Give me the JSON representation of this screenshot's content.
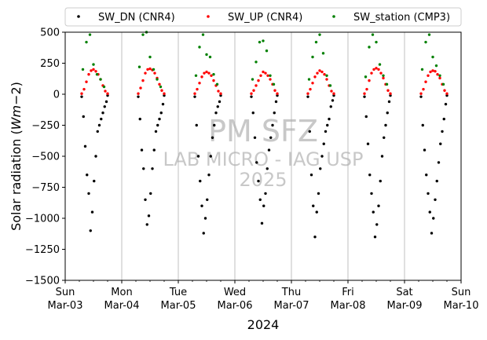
{
  "chart_data": {
    "type": "scatter",
    "title": "",
    "xlabel": "2024",
    "ylabel": "Solar radiation (Wm−2)",
    "ylabel_prefix": "Solar radiation (",
    "ylabel_unit": "Wm",
    "ylabel_suffix": "−2)",
    "xlim": [
      "2024-03-03T00:00",
      "2024-03-10T00:00"
    ],
    "ylim": [
      -1500,
      500
    ],
    "yticks": [
      500,
      250,
      0,
      -250,
      -500,
      -750,
      -1000,
      -1250,
      -1500
    ],
    "ytick_labels": [
      "500",
      "250",
      "0",
      "−250",
      "−500",
      "−750",
      "−1000",
      "−1250",
      "−1500"
    ],
    "xticks": [
      {
        "date": "2024-03-03",
        "day": "Sun",
        "label": "Mar-03"
      },
      {
        "date": "2024-03-04",
        "day": "Mon",
        "label": "Mar-04"
      },
      {
        "date": "2024-03-05",
        "day": "Tue",
        "label": "Mar-05"
      },
      {
        "date": "2024-03-06",
        "day": "Wed",
        "label": "Mar-06"
      },
      {
        "date": "2024-03-07",
        "day": "Thu",
        "label": "Mar-07"
      },
      {
        "date": "2024-03-08",
        "day": "Fri",
        "label": "Mar-08"
      },
      {
        "date": "2024-03-09",
        "day": "Sat",
        "label": "Mar-09"
      },
      {
        "date": "2024-03-10",
        "day": "Sun",
        "label": "Mar-10"
      }
    ],
    "grid": "vertical at day boundaries",
    "legend_position": "top",
    "series": [
      {
        "name": "SW_DN (CNR4)",
        "color": "#000000",
        "x": [
          "2024-03-03T07:00",
          "2024-03-03T07:45",
          "2024-03-03T08:30",
          "2024-03-03T09:15",
          "2024-03-03T10:00",
          "2024-03-03T10:45",
          "2024-03-03T11:30",
          "2024-03-03T12:15",
          "2024-03-03T13:00",
          "2024-03-03T13:45",
          "2024-03-03T14:30",
          "2024-03-03T15:15",
          "2024-03-03T16:00",
          "2024-03-03T16:45",
          "2024-03-03T17:30",
          "2024-03-03T18:00",
          "2024-03-04T07:00",
          "2024-03-04T07:45",
          "2024-03-04T08:30",
          "2024-03-04T09:15",
          "2024-03-04T10:00",
          "2024-03-04T10:45",
          "2024-03-04T11:30",
          "2024-03-04T12:15",
          "2024-03-04T13:00",
          "2024-03-04T13:45",
          "2024-03-04T14:30",
          "2024-03-04T15:15",
          "2024-03-04T16:00",
          "2024-03-04T16:45",
          "2024-03-04T17:30",
          "2024-03-04T18:00",
          "2024-03-05T07:00",
          "2024-03-05T07:45",
          "2024-03-05T08:30",
          "2024-03-05T09:15",
          "2024-03-05T10:00",
          "2024-03-05T10:45",
          "2024-03-05T11:30",
          "2024-03-05T12:15",
          "2024-03-05T13:00",
          "2024-03-05T13:45",
          "2024-03-05T14:30",
          "2024-03-05T15:15",
          "2024-03-05T16:00",
          "2024-03-05T16:45",
          "2024-03-05T17:30",
          "2024-03-05T18:00",
          "2024-03-06T07:00",
          "2024-03-06T07:45",
          "2024-03-06T08:30",
          "2024-03-06T09:15",
          "2024-03-06T10:00",
          "2024-03-06T10:45",
          "2024-03-06T11:30",
          "2024-03-06T12:15",
          "2024-03-06T13:00",
          "2024-03-06T13:45",
          "2024-03-06T14:30",
          "2024-03-06T15:15",
          "2024-03-06T16:00",
          "2024-03-06T16:45",
          "2024-03-06T17:30",
          "2024-03-06T18:00",
          "2024-03-07T07:00",
          "2024-03-07T07:45",
          "2024-03-07T08:30",
          "2024-03-07T09:15",
          "2024-03-07T10:00",
          "2024-03-07T10:45",
          "2024-03-07T11:30",
          "2024-03-07T12:15",
          "2024-03-07T13:00",
          "2024-03-07T13:45",
          "2024-03-07T14:30",
          "2024-03-07T15:15",
          "2024-03-07T16:00",
          "2024-03-07T16:45",
          "2024-03-07T17:30",
          "2024-03-07T18:00",
          "2024-03-08T07:00",
          "2024-03-08T07:45",
          "2024-03-08T08:30",
          "2024-03-08T09:15",
          "2024-03-08T10:00",
          "2024-03-08T10:45",
          "2024-03-08T11:30",
          "2024-03-08T12:15",
          "2024-03-08T13:00",
          "2024-03-08T13:45",
          "2024-03-08T14:30",
          "2024-03-08T15:15",
          "2024-03-08T16:00",
          "2024-03-08T16:45",
          "2024-03-08T17:30",
          "2024-03-08T18:00",
          "2024-03-09T07:00",
          "2024-03-09T07:45",
          "2024-03-09T08:30",
          "2024-03-09T09:15",
          "2024-03-09T10:00",
          "2024-03-09T10:45",
          "2024-03-09T11:30",
          "2024-03-09T12:15",
          "2024-03-09T13:00",
          "2024-03-09T13:45",
          "2024-03-09T14:30",
          "2024-03-09T15:15",
          "2024-03-09T16:00",
          "2024-03-09T16:45",
          "2024-03-09T17:30",
          "2024-03-09T18:00"
        ],
        "y": [
          -20,
          -180,
          -420,
          -650,
          -800,
          -1100,
          -950,
          -700,
          -500,
          -300,
          -250,
          -200,
          -150,
          -100,
          -60,
          -10,
          -20,
          -200,
          -450,
          -600,
          -850,
          -1050,
          -980,
          -800,
          -600,
          -450,
          -300,
          -250,
          -200,
          -150,
          -80,
          -10,
          -20,
          -250,
          -500,
          -700,
          -900,
          -1120,
          -1000,
          -850,
          -650,
          -500,
          -350,
          -250,
          -150,
          -100,
          -60,
          -10,
          -20,
          -150,
          -350,
          -550,
          -700,
          -850,
          -1040,
          -900,
          -800,
          -600,
          -450,
          -350,
          -250,
          -150,
          -60,
          -10,
          -20,
          -300,
          -650,
          -900,
          -1150,
          -950,
          -800,
          -600,
          -500,
          -400,
          -300,
          -250,
          -200,
          -100,
          -50,
          -10,
          -20,
          -180,
          -400,
          -650,
          -800,
          -950,
          -1150,
          -1050,
          -900,
          -700,
          -500,
          -350,
          -250,
          -150,
          -60,
          -10,
          -20,
          -250,
          -450,
          -650,
          -800,
          -950,
          -1120,
          -1000,
          -850,
          -700,
          -550,
          -400,
          -300,
          -200,
          -80,
          -10
        ]
      },
      {
        "name": "SW_UP (CNR4)",
        "color": "#ff0000",
        "x": [
          "2024-03-03T07:00",
          "2024-03-03T08:00",
          "2024-03-03T09:00",
          "2024-03-03T10:00",
          "2024-03-03T11:00",
          "2024-03-03T12:00",
          "2024-03-03T13:00",
          "2024-03-03T14:00",
          "2024-03-03T15:00",
          "2024-03-03T16:00",
          "2024-03-03T17:00",
          "2024-03-03T18:00",
          "2024-03-04T07:00",
          "2024-03-04T08:00",
          "2024-03-04T09:00",
          "2024-03-04T10:00",
          "2024-03-04T11:00",
          "2024-03-04T12:00",
          "2024-03-04T13:00",
          "2024-03-04T14:00",
          "2024-03-04T15:00",
          "2024-03-04T16:00",
          "2024-03-04T17:00",
          "2024-03-04T18:00",
          "2024-03-05T07:00",
          "2024-03-05T08:00",
          "2024-03-05T09:00",
          "2024-03-05T10:00",
          "2024-03-05T11:00",
          "2024-03-05T12:00",
          "2024-03-05T13:00",
          "2024-03-05T14:00",
          "2024-03-05T15:00",
          "2024-03-05T16:00",
          "2024-03-05T17:00",
          "2024-03-05T18:00",
          "2024-03-06T07:00",
          "2024-03-06T08:00",
          "2024-03-06T09:00",
          "2024-03-06T10:00",
          "2024-03-06T11:00",
          "2024-03-06T12:00",
          "2024-03-06T13:00",
          "2024-03-06T14:00",
          "2024-03-06T15:00",
          "2024-03-06T16:00",
          "2024-03-06T17:00",
          "2024-03-06T18:00",
          "2024-03-07T07:00",
          "2024-03-07T08:00",
          "2024-03-07T09:00",
          "2024-03-07T10:00",
          "2024-03-07T11:00",
          "2024-03-07T12:00",
          "2024-03-07T13:00",
          "2024-03-07T14:00",
          "2024-03-07T15:00",
          "2024-03-07T16:00",
          "2024-03-07T17:00",
          "2024-03-07T18:00",
          "2024-03-08T07:00",
          "2024-03-08T08:00",
          "2024-03-08T09:00",
          "2024-03-08T10:00",
          "2024-03-08T11:00",
          "2024-03-08T12:00",
          "2024-03-08T13:00",
          "2024-03-08T14:00",
          "2024-03-08T15:00",
          "2024-03-08T16:00",
          "2024-03-08T17:00",
          "2024-03-08T18:00",
          "2024-03-09T07:00",
          "2024-03-09T08:00",
          "2024-03-09T09:00",
          "2024-03-09T10:00",
          "2024-03-09T11:00",
          "2024-03-09T12:00",
          "2024-03-09T13:00",
          "2024-03-09T14:00",
          "2024-03-09T15:00",
          "2024-03-09T16:00",
          "2024-03-09T17:00",
          "2024-03-09T18:00"
        ],
        "y": [
          5,
          40,
          100,
          160,
          190,
          200,
          185,
          160,
          120,
          70,
          25,
          5,
          5,
          50,
          110,
          170,
          200,
          205,
          195,
          170,
          130,
          80,
          30,
          5,
          5,
          40,
          90,
          140,
          170,
          180,
          170,
          150,
          110,
          70,
          25,
          5,
          5,
          30,
          70,
          110,
          150,
          180,
          170,
          150,
          120,
          80,
          30,
          5,
          5,
          40,
          90,
          140,
          170,
          190,
          180,
          160,
          120,
          70,
          25,
          5,
          5,
          40,
          110,
          170,
          200,
          210,
          200,
          170,
          130,
          80,
          30,
          5,
          5,
          40,
          100,
          150,
          180,
          190,
          185,
          160,
          130,
          80,
          30,
          5
        ]
      },
      {
        "name": "SW_station (CMP3)",
        "color": "#008000",
        "x": [
          "2024-03-03T07:30",
          "2024-03-03T09:00",
          "2024-03-03T10:30",
          "2024-03-03T12:00",
          "2024-03-03T13:30",
          "2024-03-03T15:00",
          "2024-03-03T16:30",
          "2024-03-04T07:30",
          "2024-03-04T09:00",
          "2024-03-04T10:30",
          "2024-03-04T12:00",
          "2024-03-04T13:30",
          "2024-03-04T15:00",
          "2024-03-04T16:30",
          "2024-03-05T07:30",
          "2024-03-05T09:00",
          "2024-03-05T10:30",
          "2024-03-05T12:00",
          "2024-03-05T13:30",
          "2024-03-05T15:00",
          "2024-03-05T16:30",
          "2024-03-06T07:30",
          "2024-03-06T09:00",
          "2024-03-06T10:30",
          "2024-03-06T12:00",
          "2024-03-06T13:30",
          "2024-03-06T15:00",
          "2024-03-06T16:30",
          "2024-03-07T07:30",
          "2024-03-07T09:00",
          "2024-03-07T10:30",
          "2024-03-07T12:00",
          "2024-03-07T13:30",
          "2024-03-07T15:00",
          "2024-03-07T16:30",
          "2024-03-08T07:30",
          "2024-03-08T09:00",
          "2024-03-08T10:30",
          "2024-03-08T12:00",
          "2024-03-08T13:30",
          "2024-03-08T15:00",
          "2024-03-08T16:30",
          "2024-03-09T07:30",
          "2024-03-09T09:00",
          "2024-03-09T10:30",
          "2024-03-09T12:00",
          "2024-03-09T13:30",
          "2024-03-09T15:00",
          "2024-03-09T16:30"
        ],
        "y": [
          200,
          420,
          480,
          240,
          160,
          120,
          60,
          220,
          480,
          500,
          300,
          200,
          120,
          60,
          150,
          380,
          480,
          320,
          300,
          160,
          80,
          120,
          260,
          420,
          430,
          350,
          150,
          80,
          120,
          300,
          420,
          480,
          330,
          150,
          70,
          140,
          380,
          480,
          420,
          240,
          150,
          80,
          200,
          420,
          480,
          300,
          230,
          150,
          80
        ]
      }
    ],
    "watermark": [
      "PM SFZ",
      "LAB MICRO - IAG USP",
      "2025"
    ]
  }
}
